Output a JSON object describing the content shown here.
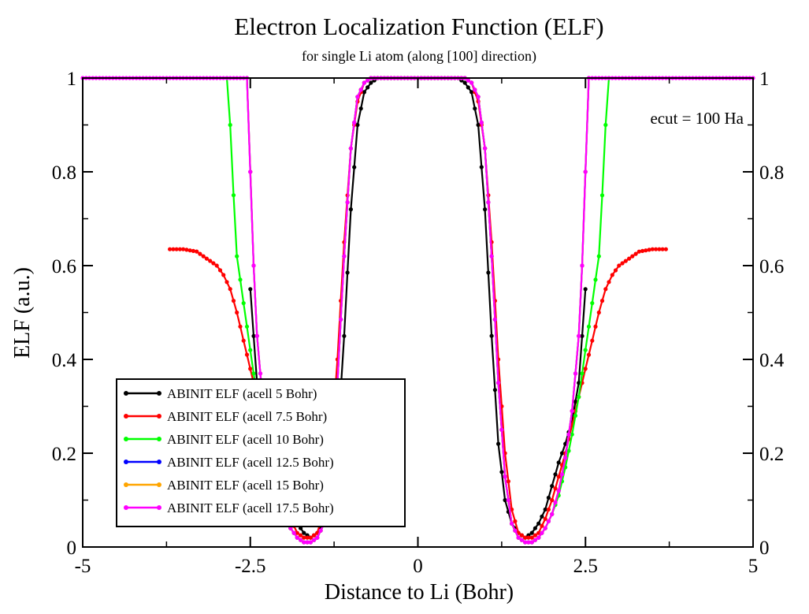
{
  "chart_data": {
    "type": "line",
    "title": "Electron Localization Function (ELF)",
    "subtitle": "for single Li atom (along [100] direction)",
    "xlabel": "Distance to Li (Bohr)",
    "ylabel": "ELF (a.u.)",
    "xlim": [
      -5,
      5
    ],
    "ylim": [
      0,
      1
    ],
    "x_ticks": [
      -5,
      -2.5,
      0,
      2.5,
      5
    ],
    "x_tick_labels": [
      "-5",
      "-2.5",
      "0",
      "2.5",
      "5"
    ],
    "y_ticks": [
      0,
      0.2,
      0.4,
      0.6,
      0.8,
      1
    ],
    "y_tick_labels": [
      "0",
      "0.2",
      "0.4",
      "0.6",
      "0.8",
      "1"
    ],
    "annotation": "ecut = 100 Ha",
    "legend_position": "bottom-left",
    "grid": false,
    "series": [
      {
        "name": "ABINIT ELF (acell 5 Bohr)",
        "color": "#000000",
        "half_profile": [
          [
            0,
            1
          ],
          [
            0.6,
            1
          ],
          [
            0.7,
            0.99
          ],
          [
            0.8,
            0.97
          ],
          [
            0.9,
            0.9
          ],
          [
            1.0,
            0.72
          ],
          [
            1.1,
            0.45
          ],
          [
            1.2,
            0.22
          ],
          [
            1.3,
            0.1
          ],
          [
            1.4,
            0.05
          ],
          [
            1.5,
            0.03
          ],
          [
            1.6,
            0.02
          ],
          [
            1.7,
            0.03
          ],
          [
            1.8,
            0.05
          ],
          [
            1.9,
            0.08
          ],
          [
            2.0,
            0.13
          ],
          [
            2.1,
            0.18
          ],
          [
            2.2,
            0.22
          ],
          [
            2.3,
            0.27
          ],
          [
            2.4,
            0.35
          ],
          [
            2.45,
            0.45
          ],
          [
            2.5,
            0.55
          ]
        ]
      },
      {
        "name": "ABINIT ELF (acell 7.5 Bohr)",
        "color": "#ff0000",
        "half_profile": [
          [
            0,
            1
          ],
          [
            0.7,
            1
          ],
          [
            0.8,
            0.99
          ],
          [
            0.9,
            0.95
          ],
          [
            1.0,
            0.85
          ],
          [
            1.1,
            0.65
          ],
          [
            1.2,
            0.4
          ],
          [
            1.3,
            0.2
          ],
          [
            1.4,
            0.08
          ],
          [
            1.5,
            0.03
          ],
          [
            1.6,
            0.02
          ],
          [
            1.7,
            0.02
          ],
          [
            1.8,
            0.03
          ],
          [
            1.9,
            0.06
          ],
          [
            2.0,
            0.1
          ],
          [
            2.1,
            0.15
          ],
          [
            2.2,
            0.2
          ],
          [
            2.3,
            0.26
          ],
          [
            2.4,
            0.32
          ],
          [
            2.5,
            0.38
          ],
          [
            2.6,
            0.44
          ],
          [
            2.7,
            0.5
          ],
          [
            2.8,
            0.55
          ],
          [
            2.9,
            0.58
          ],
          [
            3.0,
            0.6
          ],
          [
            3.1,
            0.61
          ],
          [
            3.2,
            0.62
          ],
          [
            3.3,
            0.63
          ],
          [
            3.5,
            0.635
          ],
          [
            3.7,
            0.635
          ]
        ]
      },
      {
        "name": "ABINIT ELF (acell 10 Bohr)",
        "color": "#00ff00",
        "half_profile": [
          [
            0,
            1
          ],
          [
            0.7,
            1
          ],
          [
            0.8,
            0.99
          ],
          [
            0.9,
            0.96
          ],
          [
            1.0,
            0.85
          ],
          [
            1.1,
            0.62
          ],
          [
            1.2,
            0.35
          ],
          [
            1.3,
            0.15
          ],
          [
            1.4,
            0.05
          ],
          [
            1.5,
            0.02
          ],
          [
            1.6,
            0.01
          ],
          [
            1.7,
            0.01
          ],
          [
            1.8,
            0.02
          ],
          [
            1.9,
            0.04
          ],
          [
            2.0,
            0.07
          ],
          [
            2.1,
            0.11
          ],
          [
            2.2,
            0.17
          ],
          [
            2.3,
            0.24
          ],
          [
            2.4,
            0.32
          ],
          [
            2.5,
            0.42
          ],
          [
            2.6,
            0.52
          ],
          [
            2.7,
            0.62
          ],
          [
            2.75,
            0.75
          ],
          [
            2.8,
            0.9
          ],
          [
            2.85,
            1
          ]
        ]
      },
      {
        "name": "ABINIT ELF (acell 12.5 Bohr)",
        "color": "#0000ff",
        "half_profile": [
          [
            0,
            1
          ],
          [
            0.7,
            1
          ],
          [
            0.8,
            0.99
          ],
          [
            0.9,
            0.96
          ],
          [
            1.0,
            0.85
          ],
          [
            1.1,
            0.62
          ],
          [
            1.2,
            0.35
          ],
          [
            1.3,
            0.15
          ],
          [
            1.4,
            0.05
          ],
          [
            1.5,
            0.02
          ],
          [
            1.6,
            0.01
          ],
          [
            1.7,
            0.01
          ],
          [
            1.8,
            0.02
          ],
          [
            1.9,
            0.04
          ],
          [
            2.0,
            0.07
          ],
          [
            2.1,
            0.12
          ],
          [
            2.2,
            0.19
          ],
          [
            2.3,
            0.29
          ],
          [
            2.4,
            0.45
          ],
          [
            2.45,
            0.6
          ],
          [
            2.5,
            0.8
          ],
          [
            2.55,
            1
          ]
        ]
      },
      {
        "name": "ABINIT ELF (acell 15 Bohr)",
        "color": "#ffa500",
        "half_profile": [
          [
            0,
            1
          ],
          [
            0.7,
            1
          ],
          [
            0.8,
            0.99
          ],
          [
            0.9,
            0.96
          ],
          [
            1.0,
            0.85
          ],
          [
            1.1,
            0.62
          ],
          [
            1.2,
            0.35
          ],
          [
            1.3,
            0.15
          ],
          [
            1.4,
            0.05
          ],
          [
            1.5,
            0.02
          ],
          [
            1.6,
            0.01
          ],
          [
            1.7,
            0.01
          ],
          [
            1.8,
            0.02
          ],
          [
            1.9,
            0.04
          ],
          [
            2.0,
            0.07
          ],
          [
            2.1,
            0.12
          ],
          [
            2.2,
            0.19
          ],
          [
            2.3,
            0.29
          ],
          [
            2.4,
            0.45
          ],
          [
            2.45,
            0.6
          ],
          [
            2.5,
            0.8
          ],
          [
            2.55,
            1
          ]
        ]
      },
      {
        "name": "ABINIT ELF (acell 17.5 Bohr)",
        "color": "#ff00ff",
        "half_profile": [
          [
            0,
            1
          ],
          [
            0.7,
            1
          ],
          [
            0.8,
            0.99
          ],
          [
            0.9,
            0.96
          ],
          [
            1.0,
            0.85
          ],
          [
            1.1,
            0.62
          ],
          [
            1.2,
            0.35
          ],
          [
            1.3,
            0.15
          ],
          [
            1.4,
            0.05
          ],
          [
            1.5,
            0.02
          ],
          [
            1.6,
            0.01
          ],
          [
            1.7,
            0.01
          ],
          [
            1.8,
            0.02
          ],
          [
            1.9,
            0.04
          ],
          [
            2.0,
            0.07
          ],
          [
            2.1,
            0.12
          ],
          [
            2.2,
            0.19
          ],
          [
            2.3,
            0.29
          ],
          [
            2.4,
            0.45
          ],
          [
            2.45,
            0.6
          ],
          [
            2.5,
            0.8
          ],
          [
            2.55,
            1
          ],
          [
            5.0,
            1
          ]
        ]
      }
    ]
  }
}
